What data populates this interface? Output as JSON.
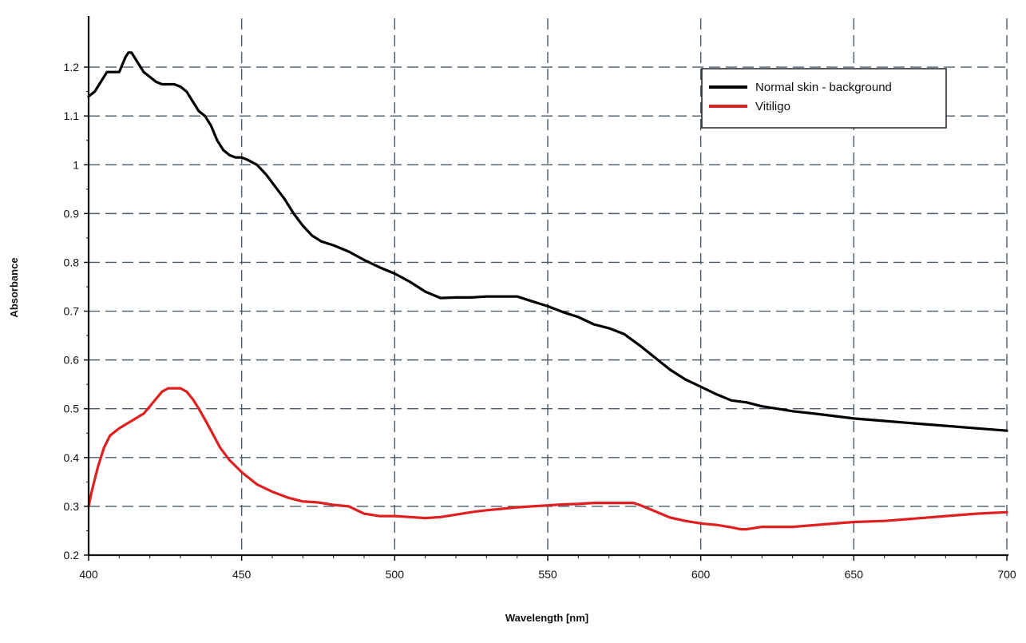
{
  "chart_data": {
    "type": "line",
    "title": "",
    "xlabel": "Wavelength [nm]",
    "ylabel": "Absorbance",
    "xlim": [
      400,
      700
    ],
    "ylim": [
      0.2,
      1.3
    ],
    "xticks": [
      400,
      450,
      500,
      550,
      600,
      650,
      700
    ],
    "yticks": [
      0.2,
      0.3,
      0.4,
      0.5,
      0.6,
      0.7,
      0.8,
      0.9,
      1,
      1.1,
      1.2
    ],
    "ytick_labels": [
      "0.2",
      "0.3",
      "0.4",
      "0.5",
      "0.6",
      "0.7",
      "0.8",
      "0.9",
      "1",
      "1.1",
      "1.2"
    ],
    "grid": true,
    "grid_style": "dashed",
    "legend_position": "top-right",
    "series": [
      {
        "name": "Normal skin - background",
        "color": "#000000",
        "x": [
          400,
          402,
          404,
          406,
          408,
          410,
          412,
          413,
          414,
          416,
          418,
          420,
          422,
          424,
          426,
          428,
          430,
          432,
          434,
          436,
          438,
          440,
          442,
          444,
          446,
          448,
          450,
          452,
          455,
          458,
          461,
          464,
          467,
          470,
          473,
          476,
          480,
          485,
          490,
          495,
          500,
          505,
          510,
          515,
          520,
          525,
          530,
          535,
          540,
          545,
          550,
          555,
          560,
          565,
          570,
          575,
          580,
          585,
          590,
          595,
          600,
          605,
          610,
          615,
          620,
          625,
          630,
          640,
          650,
          660,
          670,
          680,
          690,
          700
        ],
        "values": [
          1.14,
          1.15,
          1.17,
          1.19,
          1.19,
          1.19,
          1.22,
          1.23,
          1.23,
          1.21,
          1.19,
          1.18,
          1.17,
          1.165,
          1.165,
          1.165,
          1.16,
          1.15,
          1.13,
          1.11,
          1.1,
          1.08,
          1.05,
          1.03,
          1.02,
          1.015,
          1.015,
          1.01,
          1.0,
          0.98,
          0.955,
          0.93,
          0.9,
          0.875,
          0.855,
          0.843,
          0.835,
          0.822,
          0.805,
          0.79,
          0.777,
          0.76,
          0.74,
          0.727,
          0.728,
          0.728,
          0.73,
          0.73,
          0.73,
          0.72,
          0.71,
          0.698,
          0.688,
          0.673,
          0.665,
          0.653,
          0.63,
          0.605,
          0.58,
          0.56,
          0.545,
          0.53,
          0.517,
          0.513,
          0.505,
          0.5,
          0.495,
          0.488,
          0.48,
          0.475,
          0.47,
          0.465,
          0.46,
          0.455
        ]
      },
      {
        "name": "Vitiligo",
        "color": "#e02020",
        "x": [
          400,
          401,
          403,
          405,
          407,
          410,
          414,
          418,
          420,
          422,
          424,
          426,
          428,
          430,
          432,
          434,
          436,
          438,
          440,
          443,
          446,
          450,
          455,
          460,
          465,
          470,
          475,
          480,
          485,
          490,
          495,
          500,
          505,
          510,
          515,
          520,
          525,
          530,
          535,
          540,
          545,
          550,
          555,
          560,
          565,
          570,
          575,
          578,
          580,
          585,
          590,
          595,
          600,
          605,
          610,
          613,
          615,
          620,
          625,
          630,
          640,
          650,
          660,
          670,
          680,
          690,
          700
        ],
        "values": [
          0.3,
          0.33,
          0.38,
          0.42,
          0.445,
          0.46,
          0.475,
          0.49,
          0.505,
          0.52,
          0.535,
          0.542,
          0.542,
          0.542,
          0.535,
          0.52,
          0.5,
          0.478,
          0.455,
          0.42,
          0.395,
          0.37,
          0.345,
          0.33,
          0.318,
          0.31,
          0.308,
          0.303,
          0.3,
          0.285,
          0.28,
          0.28,
          0.278,
          0.276,
          0.278,
          0.283,
          0.288,
          0.292,
          0.295,
          0.298,
          0.3,
          0.302,
          0.304,
          0.305,
          0.307,
          0.307,
          0.307,
          0.307,
          0.303,
          0.29,
          0.277,
          0.27,
          0.265,
          0.262,
          0.257,
          0.253,
          0.253,
          0.258,
          0.258,
          0.258,
          0.263,
          0.268,
          0.27,
          0.275,
          0.28,
          0.285,
          0.288
        ]
      }
    ]
  }
}
